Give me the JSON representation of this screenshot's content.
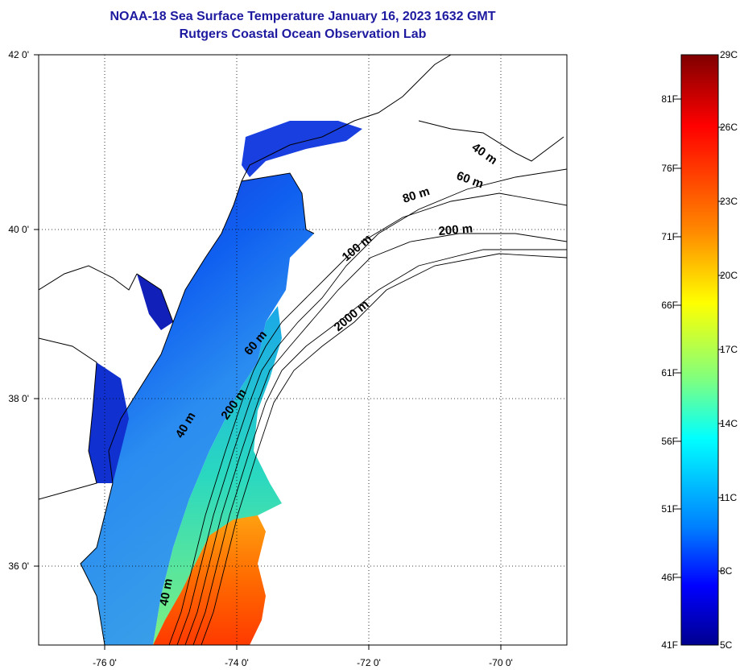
{
  "title": {
    "line1": "NOAA-18 Sea Surface Temperature January 16, 2023 1632 GMT",
    "line2": "Rutgers Coastal Ocean Observation Lab"
  },
  "map": {
    "lat_ticks": [
      {
        "label": "42 0'",
        "value": 42
      },
      {
        "label": "40 0'",
        "value": 40
      },
      {
        "label": "38 0'",
        "value": 38
      },
      {
        "label": "36 0'",
        "value": 36
      }
    ],
    "lon_ticks": [
      {
        "label": "-76 0'",
        "value": -76
      },
      {
        "label": "-74 0'",
        "value": -74
      },
      {
        "label": "-72 0'",
        "value": -72
      },
      {
        "label": "-70 0'",
        "value": -70
      }
    ],
    "lat_range": [
      35.0,
      42.0
    ],
    "lon_range": [
      -77.0,
      -69.0
    ],
    "grid": true,
    "contour_labels": [
      "40 m",
      "60 m",
      "80 m",
      "100 m",
      "200 m",
      "2000 m",
      "60 m",
      "200 m",
      "40 m",
      "40 m"
    ]
  },
  "colorbar": {
    "celsius_labels": [
      "29C",
      "26C",
      "23C",
      "20C",
      "17C",
      "14C",
      "11C",
      "8C",
      "5C"
    ],
    "fahrenheit_labels": [
      "81F",
      "76F",
      "71F",
      "66F",
      "61F",
      "56F",
      "51F",
      "46F",
      "41F"
    ],
    "range_c": [
      5,
      29
    ],
    "colors": [
      "#7f0000",
      "#ff0000",
      "#ff7f00",
      "#ffff00",
      "#7fff7f",
      "#00ffff",
      "#007fff",
      "#0000ff",
      "#00008f"
    ]
  },
  "colors": {
    "title": "#1d1aa0",
    "land": "#ffffff",
    "coast": "#000000"
  }
}
